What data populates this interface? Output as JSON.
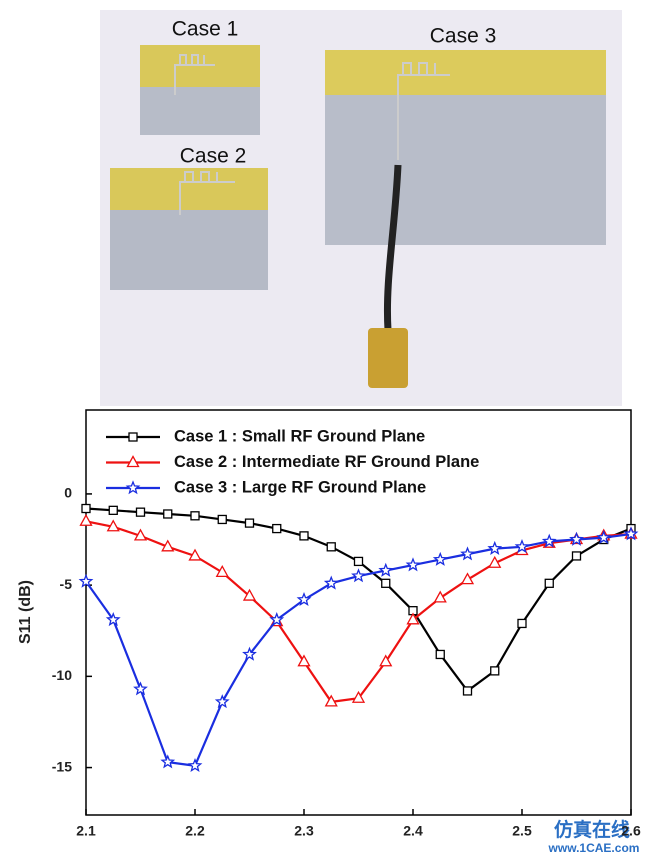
{
  "photo": {
    "labels": [
      "Case 1",
      "Case 2",
      "Case 3"
    ]
  },
  "chart_data": {
    "type": "line",
    "y_label": "S11 (dB)",
    "x": [
      2.1,
      2.125,
      2.15,
      2.175,
      2.2,
      2.225,
      2.25,
      2.275,
      2.3,
      2.325,
      2.35,
      2.375,
      2.4,
      2.425,
      2.45,
      2.475,
      2.5,
      2.525,
      2.55,
      2.575,
      2.6
    ],
    "xlim": [
      2.1,
      2.6
    ],
    "xticks": [
      2.1,
      2.2,
      2.3,
      2.4,
      2.5,
      2.6
    ],
    "ylim": [
      -17.6,
      4.6
    ],
    "yticks": [
      0,
      -5,
      -10,
      -15
    ],
    "legend": "top-left",
    "series": [
      {
        "name": "Case 1 : Small RF Ground Plane",
        "color": "#000000",
        "marker": "square",
        "values": [
          -0.8,
          -0.9,
          -1.0,
          -1.1,
          -1.2,
          -1.4,
          -1.6,
          -1.9,
          -2.3,
          -2.9,
          -3.7,
          -4.9,
          -6.4,
          -8.8,
          -10.8,
          -9.7,
          -7.1,
          -4.9,
          -3.4,
          -2.5,
          -1.9
        ]
      },
      {
        "name": "Case 2 : Intermediate RF Ground Plane",
        "color": "#ee1111",
        "marker": "triangle",
        "values": [
          -1.5,
          -1.8,
          -2.3,
          -2.9,
          -3.4,
          -4.3,
          -5.6,
          -7.0,
          -9.2,
          -11.4,
          -11.2,
          -9.2,
          -6.9,
          -5.7,
          -4.7,
          -3.8,
          -3.1,
          -2.7,
          -2.5,
          -2.3,
          -2.2
        ]
      },
      {
        "name": "Case 3 : Large RF Ground Plane",
        "color": "#1a2ee0",
        "marker": "star",
        "values": [
          -4.8,
          -6.9,
          -10.7,
          -14.7,
          -14.9,
          -11.4,
          -8.8,
          -6.9,
          -5.8,
          -4.9,
          -4.5,
          -4.2,
          -3.9,
          -3.6,
          -3.3,
          -3.0,
          -2.9,
          -2.6,
          -2.5,
          -2.4,
          -2.2
        ]
      }
    ]
  },
  "watermark": {
    "title": "仿真在线",
    "url": "www.1CAE.com"
  }
}
